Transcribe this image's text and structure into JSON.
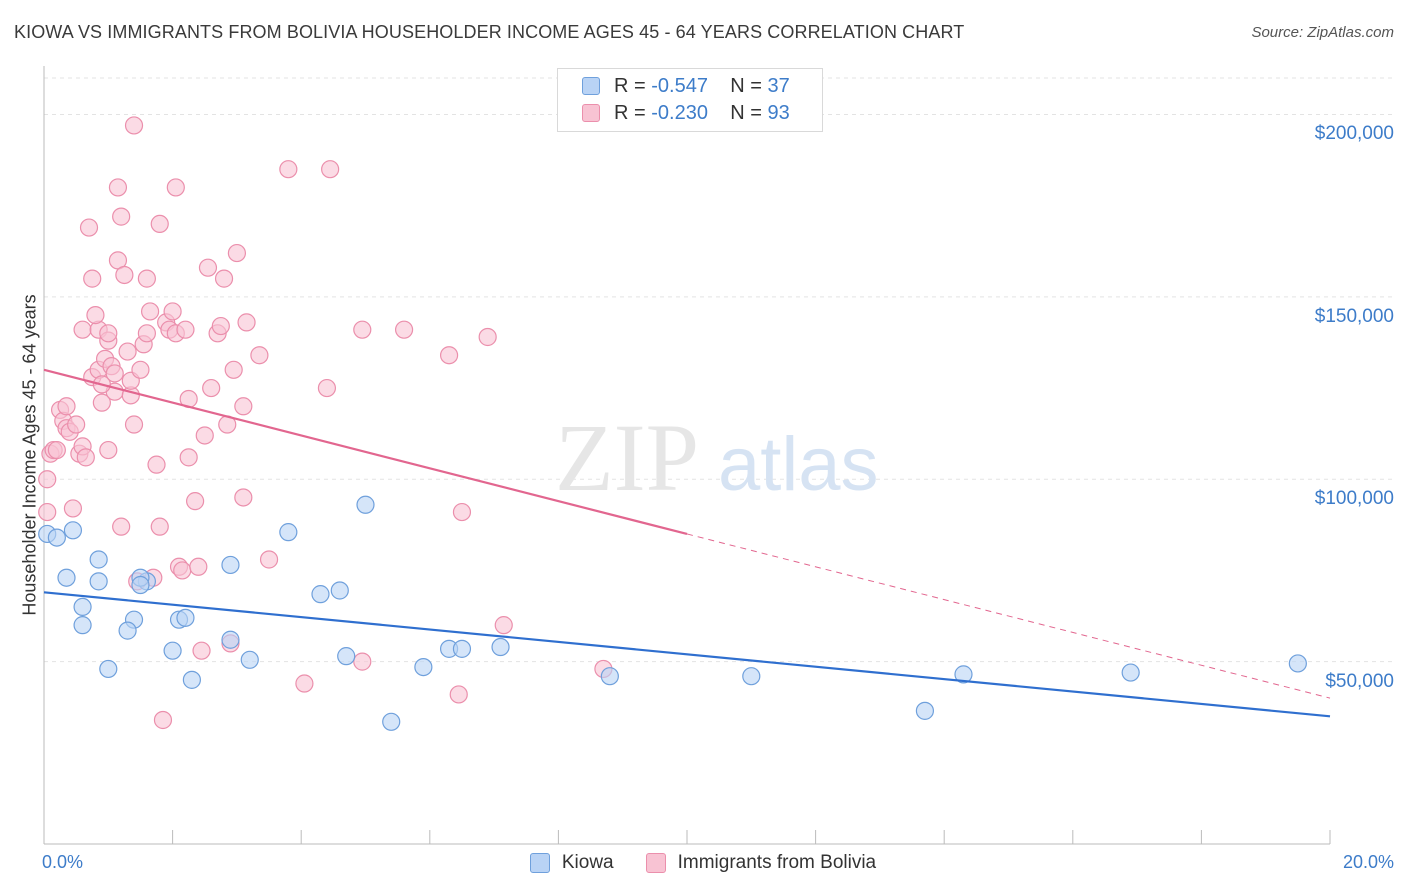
{
  "title": "KIOWA VS IMMIGRANTS FROM BOLIVIA HOUSEHOLDER INCOME AGES 45 - 64 YEARS CORRELATION CHART",
  "source": "Source: ZipAtlas.com",
  "watermark": {
    "zip": "ZIP",
    "atlas": "atlas"
  },
  "legend_top": [
    {
      "r_label": "R =",
      "r_value": "-0.547",
      "n_label": "N =",
      "n_value": "37"
    },
    {
      "r_label": "R =",
      "r_value": "-0.230",
      "n_label": "N =",
      "n_value": "93"
    }
  ],
  "legend_bottom": [
    "Kiowa",
    "Immigrants from Bolivia"
  ],
  "colors": {
    "kiowa_fill": "#b9d3f5",
    "kiowa_stroke": "#6fa0dc",
    "kiowa_line": "#2f6fcf",
    "bolivia_fill": "#f8c3d3",
    "bolivia_stroke": "#eb8fac",
    "bolivia_line": "#e2668f",
    "axis_text": "#3d7cc9",
    "grid": "#e3e3e3"
  },
  "chart_data": {
    "type": "scatter",
    "xlabel": "",
    "ylabel": "Householder Income Ages 45 - 64 years",
    "xlim": [
      0,
      20
    ],
    "ylim": [
      0,
      210000
    ],
    "x_ticks": [
      "0.0%",
      "20.0%"
    ],
    "y_ticks": [
      "$50,000",
      "$100,000",
      "$150,000",
      "$200,000"
    ],
    "y_tick_values": [
      50000,
      100000,
      150000,
      200000
    ],
    "grid": true,
    "series": [
      {
        "name": "Kiowa",
        "r": -0.547,
        "n": 37,
        "trend": {
          "x": [
            0,
            20
          ],
          "y": [
            69000,
            35000
          ]
        },
        "points": [
          [
            0.05,
            85000
          ],
          [
            0.2,
            84000
          ],
          [
            0.45,
            86000
          ],
          [
            0.35,
            73000
          ],
          [
            0.85,
            78000
          ],
          [
            0.85,
            72000
          ],
          [
            1.6,
            72000
          ],
          [
            1.5,
            73000
          ],
          [
            0.6,
            65000
          ],
          [
            0.6,
            60000
          ],
          [
            1.4,
            61500
          ],
          [
            2.1,
            61500
          ],
          [
            1.3,
            58500
          ],
          [
            2.9,
            76500
          ],
          [
            2.2,
            62000
          ],
          [
            1.0,
            48000
          ],
          [
            2.0,
            53000
          ],
          [
            2.3,
            45000
          ],
          [
            2.9,
            56000
          ],
          [
            3.2,
            50500
          ],
          [
            3.8,
            85500
          ],
          [
            4.3,
            68500
          ],
          [
            4.6,
            69500
          ],
          [
            5.0,
            93000
          ],
          [
            4.7,
            51500
          ],
          [
            5.4,
            33500
          ],
          [
            5.9,
            48500
          ],
          [
            6.3,
            53500
          ],
          [
            6.5,
            53500
          ],
          [
            7.1,
            54000
          ],
          [
            8.8,
            46000
          ],
          [
            11.0,
            46000
          ],
          [
            13.7,
            36500
          ],
          [
            14.3,
            46500
          ],
          [
            16.9,
            47000
          ],
          [
            19.5,
            49500
          ],
          [
            1.5,
            71000
          ]
        ]
      },
      {
        "name": "Immigrants from Bolivia",
        "r": -0.23,
        "n": 93,
        "trend": {
          "x": [
            0,
            10
          ],
          "y": [
            130000,
            85000
          ]
        },
        "trend_dashed": {
          "x": [
            10,
            20
          ],
          "y": [
            85000,
            40000
          ]
        },
        "points": [
          [
            0.05,
            100000
          ],
          [
            0.05,
            91000
          ],
          [
            0.1,
            107000
          ],
          [
            0.15,
            108000
          ],
          [
            0.25,
            119000
          ],
          [
            0.3,
            116000
          ],
          [
            0.35,
            114000
          ],
          [
            0.4,
            113000
          ],
          [
            0.35,
            120000
          ],
          [
            0.5,
            115000
          ],
          [
            0.55,
            107000
          ],
          [
            0.45,
            92000
          ],
          [
            0.6,
            109000
          ],
          [
            0.65,
            106000
          ],
          [
            0.6,
            141000
          ],
          [
            0.7,
            169000
          ],
          [
            0.75,
            155000
          ],
          [
            0.75,
            128000
          ],
          [
            0.85,
            141000
          ],
          [
            0.8,
            145000
          ],
          [
            0.85,
            130000
          ],
          [
            0.9,
            121000
          ],
          [
            0.95,
            133000
          ],
          [
            1.0,
            138000
          ],
          [
            1.0,
            140000
          ],
          [
            1.05,
            131000
          ],
          [
            1.1,
            124000
          ],
          [
            1.1,
            129000
          ],
          [
            1.15,
            180000
          ],
          [
            1.2,
            172000
          ],
          [
            1.15,
            160000
          ],
          [
            1.2,
            87000
          ],
          [
            1.25,
            156000
          ],
          [
            1.3,
            135000
          ],
          [
            1.35,
            123000
          ],
          [
            1.35,
            127000
          ],
          [
            1.4,
            115000
          ],
          [
            1.45,
            72000
          ],
          [
            1.4,
            197000
          ],
          [
            1.5,
            130000
          ],
          [
            1.55,
            137000
          ],
          [
            1.6,
            140000
          ],
          [
            1.6,
            155000
          ],
          [
            1.65,
            146000
          ],
          [
            1.7,
            73000
          ],
          [
            1.75,
            104000
          ],
          [
            1.8,
            170000
          ],
          [
            1.8,
            87000
          ],
          [
            1.85,
            34000
          ],
          [
            1.9,
            143000
          ],
          [
            1.95,
            141000
          ],
          [
            2.0,
            146000
          ],
          [
            2.05,
            140000
          ],
          [
            2.05,
            180000
          ],
          [
            2.1,
            76000
          ],
          [
            2.15,
            75000
          ],
          [
            2.2,
            141000
          ],
          [
            2.25,
            106000
          ],
          [
            2.25,
            122000
          ],
          [
            2.35,
            94000
          ],
          [
            2.4,
            76000
          ],
          [
            2.45,
            53000
          ],
          [
            2.5,
            112000
          ],
          [
            2.55,
            158000
          ],
          [
            2.6,
            125000
          ],
          [
            2.7,
            140000
          ],
          [
            2.75,
            142000
          ],
          [
            2.8,
            155000
          ],
          [
            2.85,
            115000
          ],
          [
            2.9,
            55000
          ],
          [
            2.95,
            130000
          ],
          [
            3.0,
            162000
          ],
          [
            3.1,
            120000
          ],
          [
            3.1,
            95000
          ],
          [
            3.15,
            143000
          ],
          [
            3.35,
            134000
          ],
          [
            3.5,
            78000
          ],
          [
            3.8,
            185000
          ],
          [
            4.05,
            44000
          ],
          [
            4.4,
            125000
          ],
          [
            4.45,
            185000
          ],
          [
            4.95,
            50000
          ],
          [
            4.95,
            141000
          ],
          [
            5.6,
            141000
          ],
          [
            6.3,
            134000
          ],
          [
            6.45,
            41000
          ],
          [
            6.5,
            91000
          ],
          [
            6.9,
            139000
          ],
          [
            7.15,
            60000
          ],
          [
            8.7,
            48000
          ],
          [
            0.2,
            108000
          ],
          [
            1.0,
            108000
          ],
          [
            0.9,
            126000
          ]
        ]
      }
    ]
  }
}
